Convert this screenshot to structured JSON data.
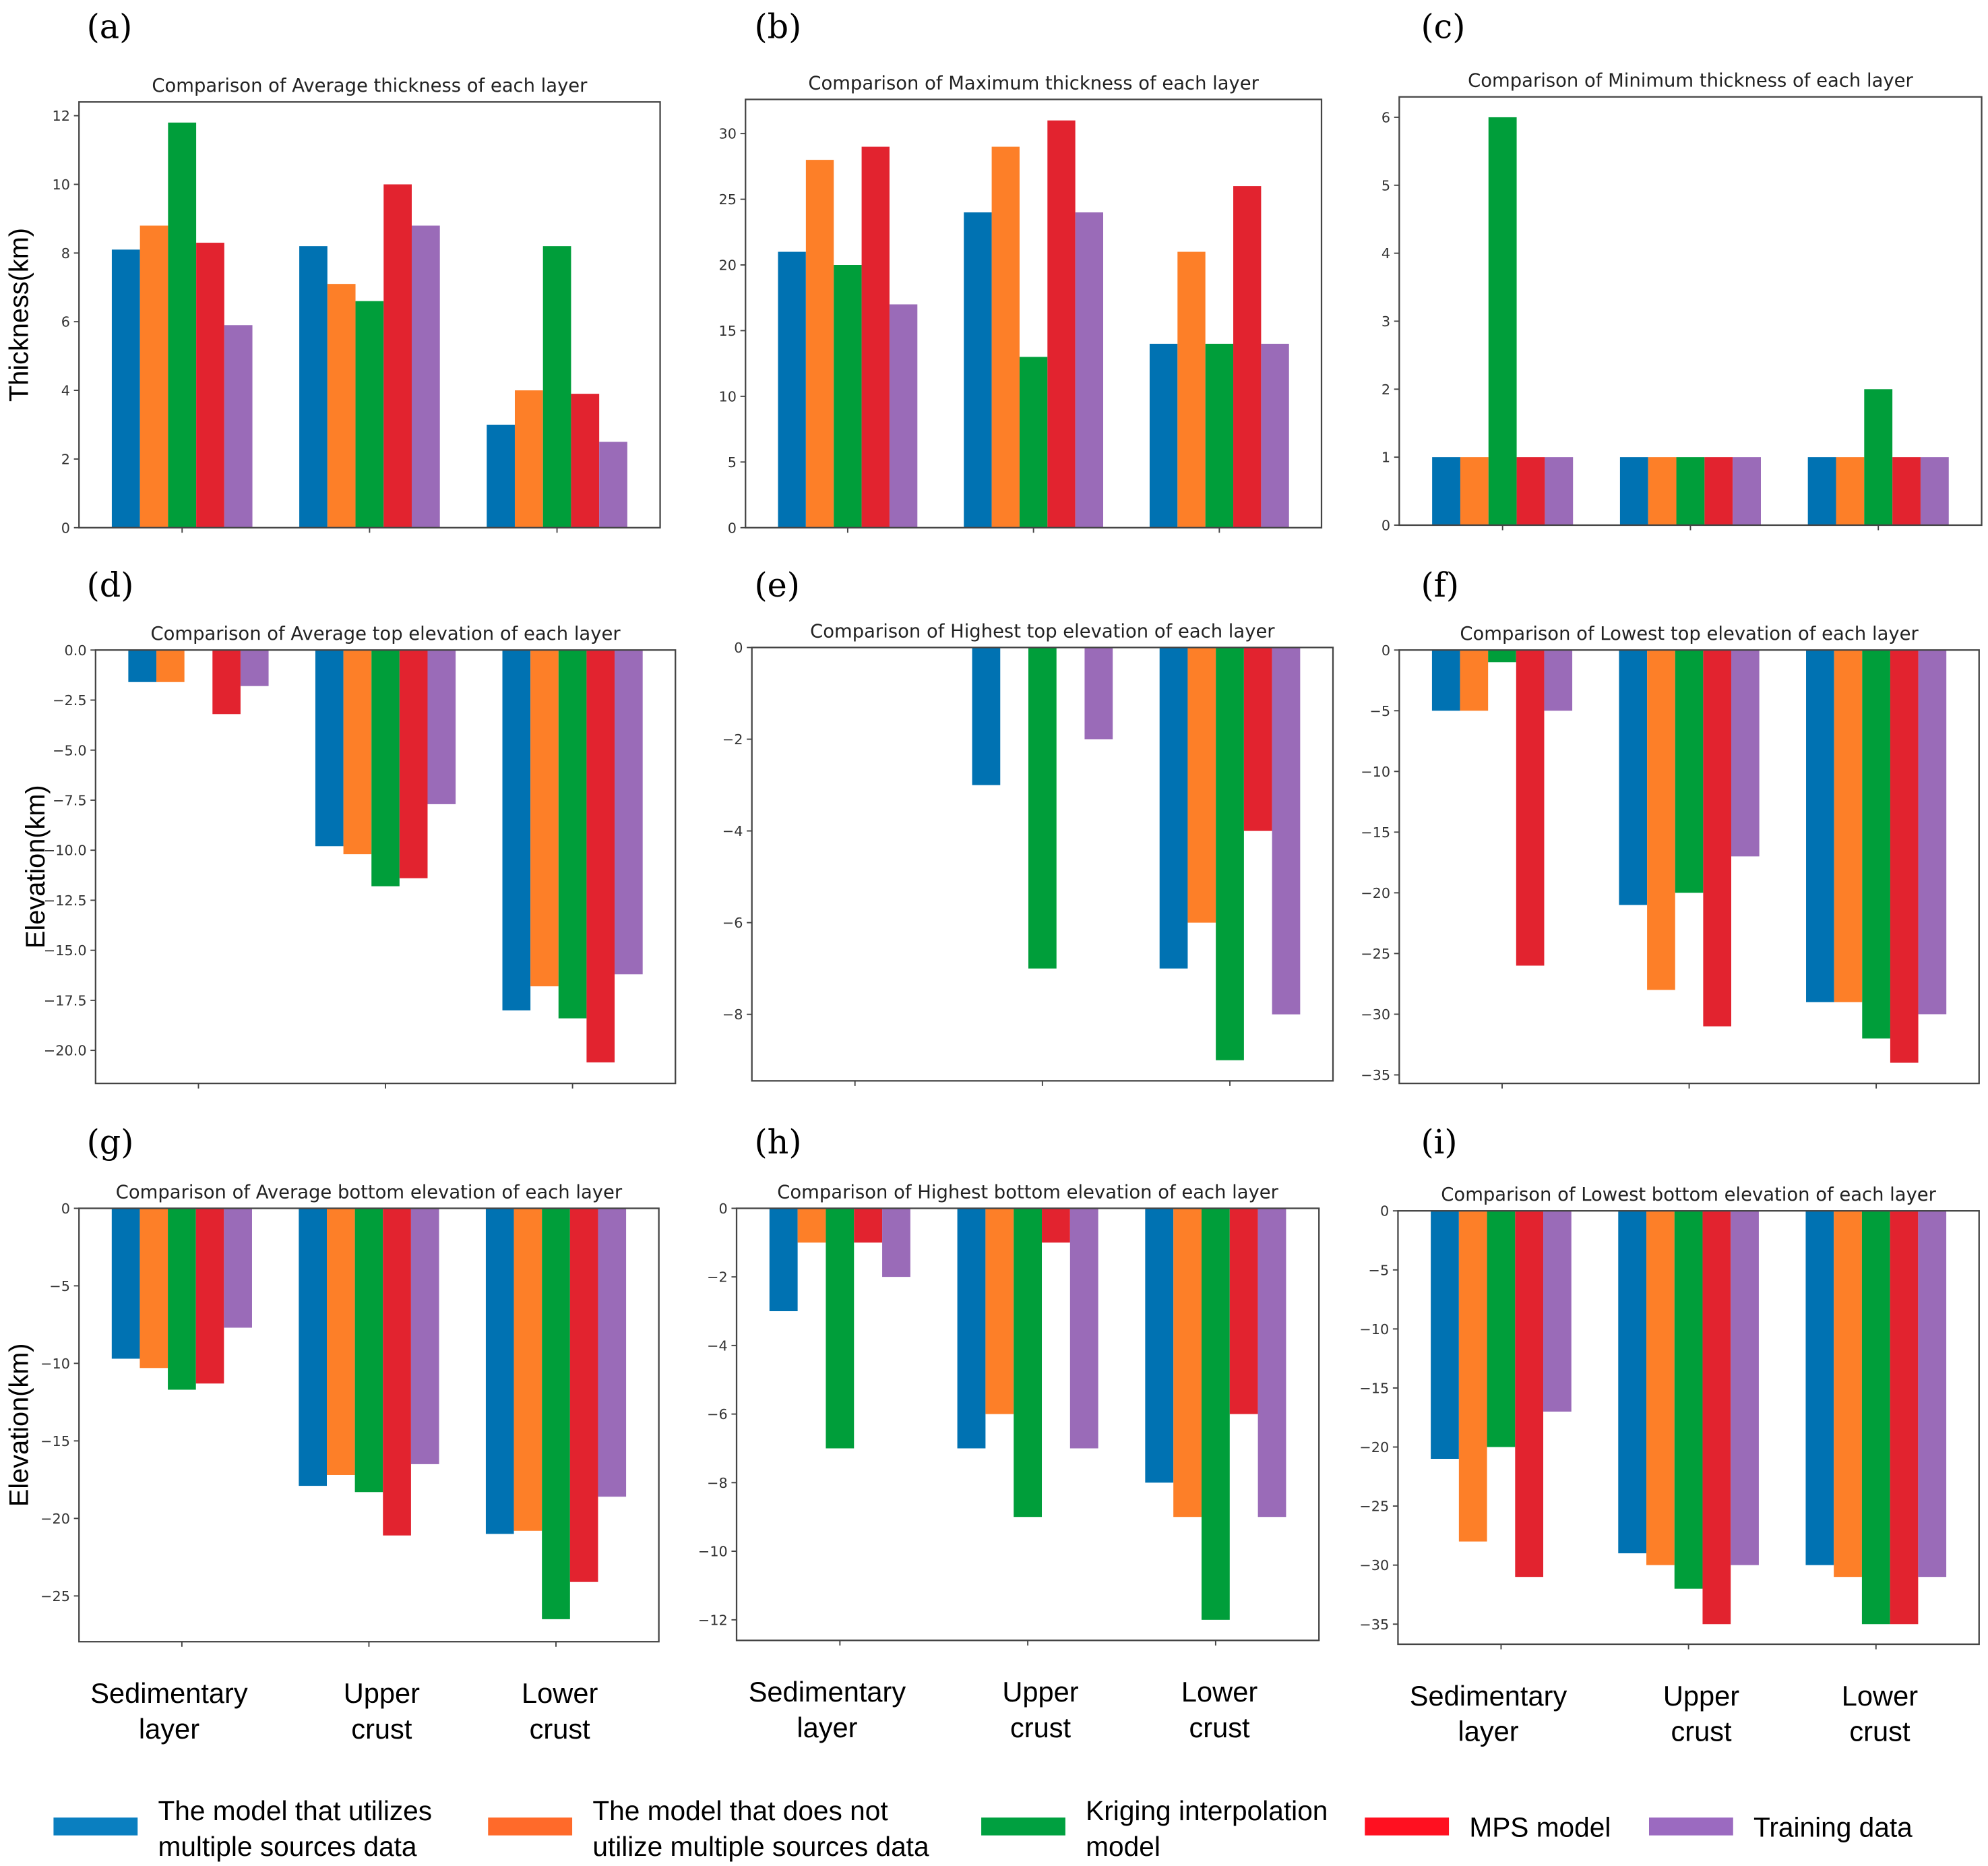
{
  "colors": [
    "#0072B2",
    "#FD7F28",
    "#009E3A",
    "#E2232F",
    "#9A6BB8"
  ],
  "legend_colors": [
    "#0A7FC0",
    "#FF6A2A",
    "#00A040",
    "#FF1020",
    "#9B6AC0"
  ],
  "legend": [
    {
      "lines": [
        "The model that utilizes",
        "multiple sources data"
      ]
    },
    {
      "lines": [
        "The model that does not",
        "utilize multiple sources data"
      ]
    },
    {
      "lines": [
        "Kriging interpolation",
        "model"
      ]
    },
    {
      "lines": [
        "MPS model"
      ]
    },
    {
      "lines": [
        "Training data"
      ]
    }
  ],
  "category_labels": [
    [
      "Sedimentary",
      "layer"
    ],
    [
      "Upper",
      "crust"
    ],
    [
      "Lower",
      "crust"
    ]
  ],
  "chart_data": [
    {
      "panel": "(a)",
      "type": "bar",
      "title": "Comparison of Average thickness of each layer",
      "ylabel": "Thickness(km)",
      "categories": [
        "Sedimentary layer",
        "Upper crust",
        "Lower crust"
      ],
      "ylim": [
        0,
        12.4
      ],
      "yticks": [
        0,
        2,
        4,
        6,
        8,
        10,
        12
      ],
      "tick_decimals": 0,
      "series": [
        {
          "name": "The model that utilizes multiple sources data",
          "values": [
            8.1,
            8.2,
            3.0
          ]
        },
        {
          "name": "The model that does not utilize multiple sources data",
          "values": [
            8.8,
            7.1,
            4.0
          ]
        },
        {
          "name": "Kriging interpolation model",
          "values": [
            11.8,
            6.6,
            8.2
          ]
        },
        {
          "name": "MPS model",
          "values": [
            8.3,
            10.0,
            3.9
          ]
        },
        {
          "name": "Training data",
          "values": [
            5.9,
            8.8,
            2.5
          ]
        }
      ]
    },
    {
      "panel": "(b)",
      "type": "bar",
      "title": "Comparison of Maximum thickness of each layer",
      "ylabel": "",
      "categories": [
        "Sedimentary layer",
        "Upper crust",
        "Lower crust"
      ],
      "ylim": [
        0,
        32.6
      ],
      "yticks": [
        0,
        5,
        10,
        15,
        20,
        25,
        30
      ],
      "tick_decimals": 0,
      "series": [
        {
          "name": "The model that utilizes multiple sources data",
          "values": [
            21,
            24,
            14
          ]
        },
        {
          "name": "The model that does not utilize multiple sources data",
          "values": [
            28,
            29,
            21
          ]
        },
        {
          "name": "Kriging interpolation model",
          "values": [
            20,
            13,
            14
          ]
        },
        {
          "name": "MPS model",
          "values": [
            29,
            31,
            26
          ]
        },
        {
          "name": "Training data",
          "values": [
            17,
            24,
            14
          ]
        }
      ]
    },
    {
      "panel": "(c)",
      "type": "bar",
      "title": "Comparison of Minimum thickness of each layer",
      "ylabel": "",
      "categories": [
        "Sedimentary layer",
        "Upper crust",
        "Lower crust"
      ],
      "ylim": [
        0,
        6.3
      ],
      "yticks": [
        0,
        1,
        2,
        3,
        4,
        5,
        6
      ],
      "tick_decimals": 0,
      "series": [
        {
          "name": "The model that utilizes multiple sources data",
          "values": [
            1,
            1,
            1
          ]
        },
        {
          "name": "The model that does not utilize multiple sources data",
          "values": [
            1,
            1,
            1
          ]
        },
        {
          "name": "Kriging interpolation model",
          "values": [
            6,
            1,
            2
          ]
        },
        {
          "name": "MPS model",
          "values": [
            1,
            1,
            1
          ]
        },
        {
          "name": "Training data",
          "values": [
            1,
            1,
            1
          ]
        }
      ]
    },
    {
      "panel": "(d)",
      "type": "bar",
      "title": "Comparison of Average top elevation of each layer",
      "ylabel": "Elevation(km)",
      "categories": [
        "Sedimentary layer",
        "Upper crust",
        "Lower crust"
      ],
      "ylim": [
        -21.65,
        0
      ],
      "yticks": [
        0,
        -2.5,
        -5,
        -7.5,
        -10,
        -12.5,
        -15,
        -17.5,
        -20
      ],
      "tick_decimals": 1,
      "series": [
        {
          "name": "The model that utilizes multiple sources data",
          "values": [
            -1.6,
            -9.8,
            -18.0
          ]
        },
        {
          "name": "The model that does not utilize multiple sources data",
          "values": [
            -1.6,
            -10.2,
            -16.8
          ]
        },
        {
          "name": "Kriging interpolation model",
          "values": [
            0,
            -11.8,
            -18.4
          ]
        },
        {
          "name": "MPS model",
          "values": [
            -3.2,
            -11.4,
            -20.6
          ]
        },
        {
          "name": "Training data",
          "values": [
            -1.8,
            -7.7,
            -16.2
          ]
        }
      ]
    },
    {
      "panel": "(e)",
      "type": "bar",
      "title": "Comparison of Highest top elevation of each layer",
      "ylabel": "",
      "categories": [
        "Sedimentary layer",
        "Upper crust",
        "Lower crust"
      ],
      "ylim": [
        -9.45,
        0
      ],
      "yticks": [
        0,
        -2,
        -4,
        -6,
        -8
      ],
      "tick_decimals": 0,
      "series": [
        {
          "name": "The model that utilizes multiple sources data",
          "values": [
            0,
            -3,
            -7
          ]
        },
        {
          "name": "The model that does not utilize multiple sources data",
          "values": [
            0,
            0,
            -6
          ]
        },
        {
          "name": "Kriging interpolation model",
          "values": [
            0,
            -7,
            -9
          ]
        },
        {
          "name": "MPS model",
          "values": [
            0,
            0,
            -4
          ]
        },
        {
          "name": "Training data",
          "values": [
            0,
            -2,
            -8
          ]
        }
      ]
    },
    {
      "panel": "(f)",
      "type": "bar",
      "title": "Comparison of Lowest top elevation of each layer",
      "ylabel": "",
      "categories": [
        "Sedimentary layer",
        "Upper crust",
        "Lower crust"
      ],
      "ylim": [
        -35.7,
        0
      ],
      "yticks": [
        0,
        -5,
        -10,
        -15,
        -20,
        -25,
        -30,
        -35
      ],
      "tick_decimals": 0,
      "series": [
        {
          "name": "The model that utilizes multiple sources data",
          "values": [
            -5,
            -21,
            -29
          ]
        },
        {
          "name": "The model that does not utilize multiple sources data",
          "values": [
            -5,
            -28,
            -29
          ]
        },
        {
          "name": "Kriging interpolation model",
          "values": [
            -1,
            -20,
            -32
          ]
        },
        {
          "name": "MPS model",
          "values": [
            -26,
            -31,
            -34
          ]
        },
        {
          "name": "Training data",
          "values": [
            -5,
            -17,
            -30
          ]
        }
      ]
    },
    {
      "panel": "(g)",
      "type": "bar",
      "title": "Comparison of Average bottom elevation of each layer",
      "ylabel": "Elevation(km)",
      "categories": [
        "Sedimentary layer",
        "Upper crust",
        "Lower crust"
      ],
      "ylim": [
        -27.95,
        0
      ],
      "yticks": [
        0,
        -5,
        -10,
        -15,
        -20,
        -25
      ],
      "tick_decimals": 0,
      "series": [
        {
          "name": "The model that utilizes multiple sources data",
          "values": [
            -9.7,
            -17.9,
            -21.0
          ]
        },
        {
          "name": "The model that does not utilize multiple sources data",
          "values": [
            -10.3,
            -17.2,
            -20.8
          ]
        },
        {
          "name": "Kriging interpolation model",
          "values": [
            -11.7,
            -18.3,
            -26.5
          ]
        },
        {
          "name": "MPS model",
          "values": [
            -11.3,
            -21.1,
            -24.1
          ]
        },
        {
          "name": "Training data",
          "values": [
            -7.7,
            -16.5,
            -18.6
          ]
        }
      ]
    },
    {
      "panel": "(h)",
      "type": "bar",
      "title": "Comparison of Highest bottom elevation of each layer",
      "ylabel": "",
      "categories": [
        "Sedimentary layer",
        "Upper crust",
        "Lower crust"
      ],
      "ylim": [
        -12.6,
        0
      ],
      "yticks": [
        0,
        -2,
        -4,
        -6,
        -8,
        -10,
        -12
      ],
      "tick_decimals": 0,
      "series": [
        {
          "name": "The model that utilizes multiple sources data",
          "values": [
            -3,
            -7,
            -8
          ]
        },
        {
          "name": "The model that does not utilize multiple sources data",
          "values": [
            -1,
            -6,
            -9
          ]
        },
        {
          "name": "Kriging interpolation model",
          "values": [
            -7,
            -9,
            -12
          ]
        },
        {
          "name": "MPS model",
          "values": [
            -1,
            -1,
            -6
          ]
        },
        {
          "name": "Training data",
          "values": [
            -2,
            -7,
            -9
          ]
        }
      ]
    },
    {
      "panel": "(i)",
      "type": "bar",
      "title": "Comparison of Lowest bottom elevation of each layer",
      "ylabel": "",
      "categories": [
        "Sedimentary layer",
        "Upper crust",
        "Lower crust"
      ],
      "ylim": [
        -36.7,
        0
      ],
      "yticks": [
        0,
        -5,
        -10,
        -15,
        -20,
        -25,
        -30,
        -35
      ],
      "tick_decimals": 0,
      "series": [
        {
          "name": "The model that utilizes multiple sources data",
          "values": [
            -21,
            -29,
            -30
          ]
        },
        {
          "name": "The model that does not utilize multiple sources data",
          "values": [
            -28,
            -30,
            -31
          ]
        },
        {
          "name": "Kriging interpolation model",
          "values": [
            -20,
            -32,
            -35
          ]
        },
        {
          "name": "MPS model",
          "values": [
            -31,
            -35,
            -35
          ]
        },
        {
          "name": "Training data",
          "values": [
            -17,
            -30,
            -31
          ]
        }
      ]
    }
  ]
}
